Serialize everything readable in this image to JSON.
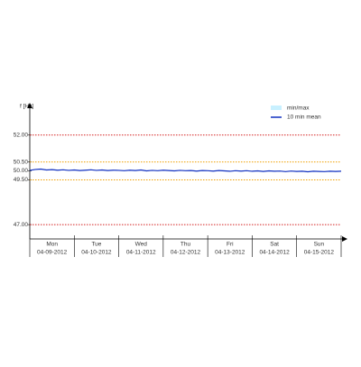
{
  "chart_data": {
    "type": "line",
    "y_label": "f [Hz]",
    "ylim": [
      46.2,
      53.6
    ],
    "xlim": [
      0,
      56
    ],
    "yticks": [
      {
        "value": 52,
        "label": "52.00"
      },
      {
        "value": 50.5,
        "label": "50.50"
      },
      {
        "value": 50,
        "label": "50.00"
      },
      {
        "value": 49.5,
        "label": "49.50"
      },
      {
        "value": 47,
        "label": "47.00"
      }
    ],
    "reference_lines": [
      {
        "value": 52,
        "color": "#d42020"
      },
      {
        "value": 50.5,
        "color": "#f0a000"
      },
      {
        "value": 49.5,
        "color": "#f0a000"
      },
      {
        "value": 47,
        "color": "#d42020"
      }
    ],
    "days": [
      {
        "name": "Mon",
        "date": "04-09-2012"
      },
      {
        "name": "Tue",
        "date": "04-10-2012"
      },
      {
        "name": "Wed",
        "date": "04-11-2012"
      },
      {
        "name": "Thu",
        "date": "04-12-2012"
      },
      {
        "name": "Fri",
        "date": "04-13-2012"
      },
      {
        "name": "Sat",
        "date": "04-14-2012"
      },
      {
        "name": "Sun",
        "date": "04-15-2012"
      }
    ],
    "legend": [
      {
        "name": "min/max",
        "color": "#c8f0ff"
      }
    ],
    "x": [
      0,
      1,
      2,
      3,
      4,
      5,
      6,
      7,
      8,
      9,
      10,
      11,
      12,
      13,
      14,
      15,
      16,
      17,
      18,
      19,
      20,
      21,
      22,
      23,
      24,
      25,
      26,
      27,
      28,
      29,
      30,
      31,
      32,
      33,
      34,
      35,
      36,
      37,
      38,
      39,
      40,
      41,
      42,
      43,
      44,
      45,
      46,
      47,
      48,
      49,
      50,
      51,
      52,
      53,
      54,
      55,
      56
    ],
    "series": [
      {
        "name": "10 min mean",
        "color": "#1030c0",
        "values": [
          50.03,
          50.08,
          50.1,
          50.05,
          50.07,
          50.04,
          50.06,
          50.03,
          50.05,
          50.02,
          50.04,
          50.06,
          50.03,
          50.05,
          50.02,
          50.04,
          50.03,
          50.01,
          50.04,
          50.02,
          50.05,
          50.0,
          50.03,
          50.01,
          50.04,
          50.02,
          50.0,
          50.03,
          50.01,
          50.02,
          49.99,
          50.02,
          50.01,
          49.99,
          50.02,
          50.0,
          49.98,
          50.01,
          49.99,
          50.01,
          49.98,
          50.0,
          49.97,
          50.0,
          49.98,
          49.99,
          49.96,
          49.99,
          49.97,
          49.98,
          49.95,
          49.98,
          49.97,
          49.96,
          49.98,
          49.97,
          49.98
        ]
      }
    ]
  }
}
